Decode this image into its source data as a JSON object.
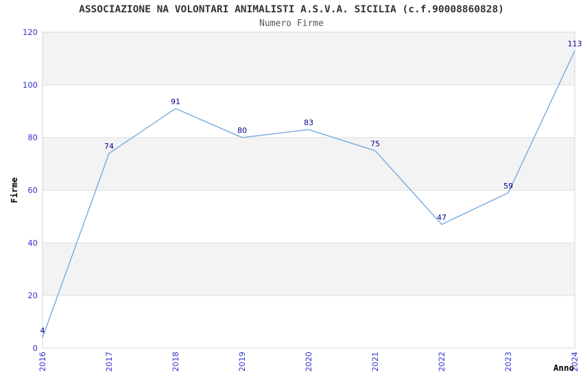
{
  "chart_data": {
    "type": "line",
    "title": "ASSOCIAZIONE NA VOLONTARI ANIMALISTI A.S.V.A. SICILIA (c.f.90008860828)",
    "subtitle": "Numero Firme",
    "xlabel": "Anno",
    "ylabel": "Firme",
    "x": [
      "2016",
      "2017",
      "2018",
      "2019",
      "2020",
      "2021",
      "2022",
      "2023",
      "2024"
    ],
    "series": [
      {
        "name": "Numero Firme",
        "values": [
          4,
          74,
          91,
          80,
          83,
          75,
          47,
          59,
          113
        ]
      }
    ],
    "ylim": [
      0,
      120
    ],
    "yticks": [
      0,
      20,
      40,
      60,
      80,
      100,
      120
    ],
    "grid": "horizontal-bands",
    "legend_position": "none",
    "data_labels_visible": true,
    "colors": {
      "line": "#76a9dc",
      "tick_labels": "#3333cc",
      "data_labels": "#00008b",
      "band_fill": "#f3f3f3",
      "gridline": "#e0e0e0",
      "plot_border": "#d4d4d4",
      "title": "#333333",
      "subtitle": "#555555",
      "axis_title": "#000000",
      "background": "#ffffff"
    }
  }
}
